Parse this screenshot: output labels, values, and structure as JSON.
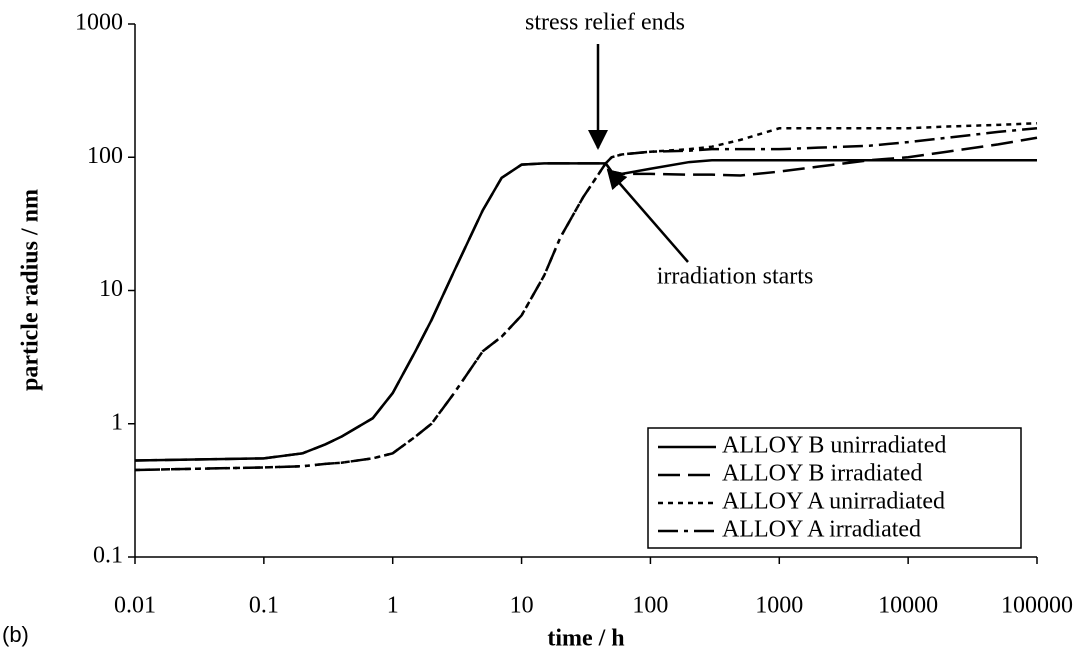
{
  "chart_data": {
    "type": "line",
    "xlabel": "time / h",
    "ylabel": "particle radius / nm",
    "panel_label": "(b)",
    "annotations": [
      "stress relief ends",
      "irradiation starts"
    ],
    "x": [
      0.01,
      0.1,
      0.2,
      0.3,
      0.4,
      0.7,
      1,
      1.5,
      2,
      3,
      5,
      7,
      10,
      15,
      20,
      30,
      45,
      50,
      60,
      100,
      200,
      300,
      500,
      1000,
      2000,
      5000,
      10000,
      20000,
      50000,
      100000
    ],
    "series": [
      {
        "name": "ALLOY B unirradiated",
        "color": "#000000",
        "dash": "solid",
        "values": [
          0.53,
          0.55,
          0.6,
          0.7,
          0.8,
          1.1,
          1.7,
          3.5,
          6,
          14,
          40,
          70,
          88,
          90,
          90,
          90,
          90,
          78,
          75,
          82,
          92,
          95,
          95,
          95,
          95,
          95,
          95,
          95,
          95,
          95
        ]
      },
      {
        "name": "ALLOY B irradiated",
        "color": "#000000",
        "dash": "dashed",
        "values": [
          0.53,
          0.55,
          0.6,
          0.7,
          0.8,
          1.1,
          1.7,
          3.5,
          6,
          14,
          40,
          70,
          88,
          90,
          90,
          90,
          90,
          78,
          75,
          75,
          74,
          74,
          73,
          78,
          85,
          95,
          100,
          110,
          125,
          140
        ]
      },
      {
        "name": "ALLOY A unirradiated",
        "color": "#000000",
        "dash": "dotted",
        "values": [
          0.45,
          0.47,
          0.48,
          0.5,
          0.51,
          0.55,
          0.6,
          0.8,
          1,
          1.7,
          3.5,
          4.5,
          6.5,
          13,
          25,
          50,
          90,
          100,
          105,
          110,
          115,
          120,
          135,
          165,
          165,
          165,
          165,
          170,
          175,
          180
        ]
      },
      {
        "name": "ALLOY A irradiated",
        "color": "#000000",
        "dash": "dashdot",
        "values": [
          0.45,
          0.47,
          0.48,
          0.5,
          0.51,
          0.55,
          0.6,
          0.8,
          1,
          1.7,
          3.5,
          4.5,
          6.5,
          13,
          25,
          50,
          90,
          100,
          105,
          110,
          112,
          115,
          115,
          115,
          118,
          122,
          130,
          140,
          155,
          165
        ]
      }
    ],
    "xlim": [
      0.01,
      100000
    ],
    "ylim": [
      0.1,
      1000
    ],
    "xticks": [
      0.01,
      0.1,
      1,
      10,
      100,
      1000,
      10000,
      100000
    ],
    "yticks": [
      0.1,
      1,
      10,
      100,
      1000
    ],
    "xlog": true,
    "ylog": true,
    "grid": false,
    "legend": "lower right"
  }
}
